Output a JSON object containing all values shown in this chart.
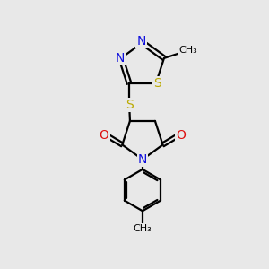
{
  "background_color": "#e8e8e8",
  "atom_colors": {
    "C": "#000000",
    "N": "#1010dd",
    "O": "#dd1010",
    "S": "#bbaa00"
  },
  "bond_color": "#000000",
  "figsize": [
    3.0,
    3.0
  ],
  "dpi": 100
}
